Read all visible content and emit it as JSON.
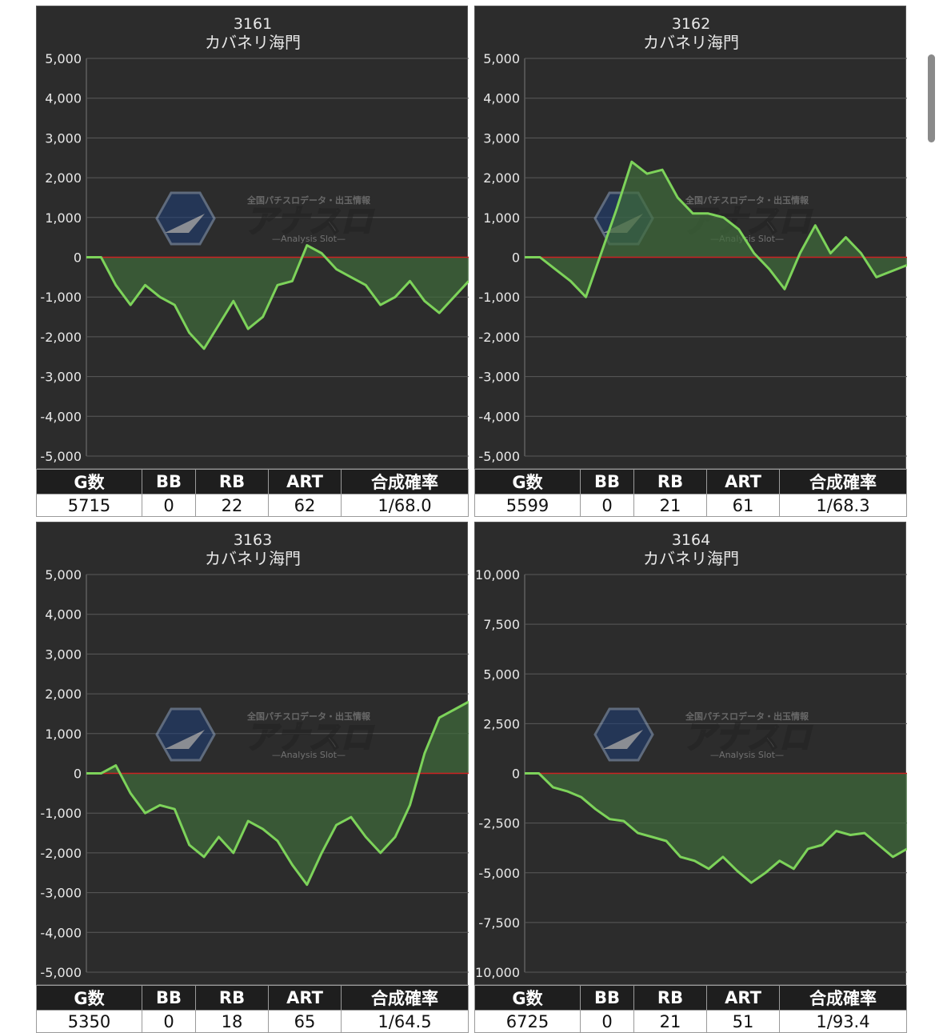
{
  "panels": [
    {
      "id": "3161",
      "machine": "カバネリ海門",
      "headers": [
        "G数",
        "BB",
        "RB",
        "ART",
        "合成確率"
      ],
      "values": [
        "5715",
        "0",
        "22",
        "62",
        "1/68.0"
      ],
      "chart_data": {
        "type": "line",
        "ylim": [
          -5000,
          5000
        ],
        "yticks": [
          5000,
          4000,
          3000,
          2000,
          1000,
          0,
          -1000,
          -2000,
          -3000,
          -4000,
          -5000
        ],
        "ytick_labels": [
          "5,000",
          "4,000",
          "3,000",
          "2,000",
          "1,000",
          "0",
          "-1,000",
          "-2,000",
          "-3,000",
          "-4,000",
          "-5,000"
        ],
        "grid": true,
        "series": [
          {
            "values": [
              0,
              0,
              -700,
              -1200,
              -700,
              -1000,
              -1200,
              -1900,
              -2300,
              -1700,
              -1100,
              -1800,
              -1500,
              -700,
              -600,
              300,
              100,
              -300,
              -500,
              -700,
              -1200,
              -1000,
              -600,
              -1100,
              -1400,
              -1000,
              -600
            ]
          }
        ]
      }
    },
    {
      "id": "3162",
      "machine": "カバネリ海門",
      "headers": [
        "G数",
        "BB",
        "RB",
        "ART",
        "合成確率"
      ],
      "values": [
        "5599",
        "0",
        "21",
        "61",
        "1/68.3"
      ],
      "chart_data": {
        "type": "line",
        "ylim": [
          -5000,
          5000
        ],
        "yticks": [
          5000,
          4000,
          3000,
          2000,
          1000,
          0,
          -1000,
          -2000,
          -3000,
          -4000,
          -5000
        ],
        "ytick_labels": [
          "5,000",
          "4,000",
          "3,000",
          "2,000",
          "1,000",
          "0",
          "-1,000",
          "-2,000",
          "-3,000",
          "-4,000",
          "-5,000"
        ],
        "grid": true,
        "series": [
          {
            "values": [
              0,
              0,
              -300,
              -600,
              -1000,
              100,
              1200,
              2400,
              2100,
              2200,
              1500,
              1100,
              1100,
              1000,
              700,
              100,
              -300,
              -800,
              100,
              800,
              100,
              500,
              100,
              -500,
              -350,
              -200
            ]
          }
        ]
      }
    },
    {
      "id": "3163",
      "machine": "カバネリ海門",
      "headers": [
        "G数",
        "BB",
        "RB",
        "ART",
        "合成確率"
      ],
      "values": [
        "5350",
        "0",
        "18",
        "65",
        "1/64.5"
      ],
      "chart_data": {
        "type": "line",
        "ylim": [
          -5000,
          5000
        ],
        "yticks": [
          5000,
          4000,
          3000,
          2000,
          1000,
          0,
          -1000,
          -2000,
          -3000,
          -4000,
          -5000
        ],
        "ytick_labels": [
          "5,000",
          "4,000",
          "3,000",
          "2,000",
          "1,000",
          "0",
          "-1,000",
          "-2,000",
          "-3,000",
          "-4,000",
          "-5,000"
        ],
        "grid": true,
        "series": [
          {
            "values": [
              0,
              0,
              200,
              -500,
              -1000,
              -800,
              -900,
              -1800,
              -2100,
              -1600,
              -2000,
              -1200,
              -1400,
              -1700,
              -2300,
              -2800,
              -2000,
              -1300,
              -1100,
              -1600,
              -2000,
              -1600,
              -800,
              500,
              1400,
              1600,
              1800
            ]
          }
        ]
      }
    },
    {
      "id": "3164",
      "machine": "カバネリ海門",
      "headers": [
        "G数",
        "BB",
        "RB",
        "ART",
        "合成確率"
      ],
      "values": [
        "6725",
        "0",
        "21",
        "51",
        "1/93.4"
      ],
      "chart_data": {
        "type": "line",
        "ylim": [
          -10000,
          10000
        ],
        "yticks": [
          10000,
          7500,
          5000,
          2500,
          0,
          -2500,
          -5000,
          -7500,
          -10000
        ],
        "ytick_labels": [
          "10,000",
          "7,500",
          "5,000",
          "2,500",
          "0",
          "-2,500",
          "-5,000",
          "-7,500",
          "-10,000"
        ],
        "grid": true,
        "series": [
          {
            "values": [
              0,
              0,
              -700,
              -900,
              -1200,
              -1800,
              -2300,
              -2400,
              -3000,
              -3200,
              -3400,
              -4200,
              -4400,
              -4800,
              -4200,
              -4900,
              -5500,
              -5000,
              -4400,
              -4800,
              -3800,
              -3600,
              -2900,
              -3100,
              -3000,
              -3600,
              -4200,
              -3800
            ]
          }
        ]
      }
    }
  ],
  "watermark": {
    "top_text": "全国パチスロデータ・出玉情報",
    "brand": "アナスロ",
    "subtitle": "—Analysis Slot—"
  },
  "colors": {
    "line": "#7dd35a",
    "fill": "#3f6b3a",
    "zero_line": "#cc2222",
    "grid": "#5a5a5a",
    "text": "#e8e8e8"
  }
}
